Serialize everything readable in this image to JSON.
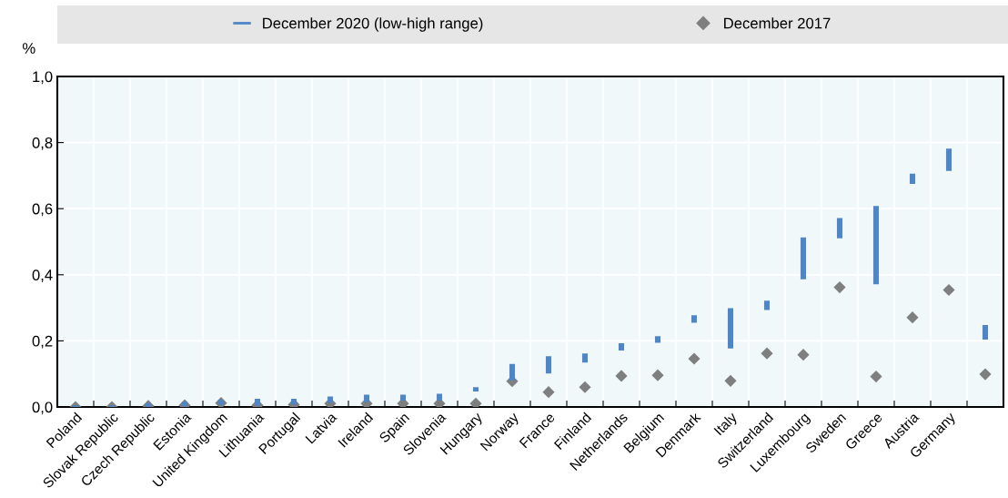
{
  "chart_data": {
    "type": "bar",
    "ylabel": "%",
    "categories": [
      "Poland",
      "Slovak Republic",
      "Czech Republic",
      "Estonia",
      "United Kingdom",
      "Lithuania",
      "Portugal",
      "Latvia",
      "Ireland",
      "Spain",
      "Slovenia",
      "Hungary",
      "Norway",
      "France",
      "Finland",
      "Netherlands",
      "Belgium",
      "Denmark",
      "Italy",
      "Switzerland",
      "Luxembourg",
      "Sweden",
      "Greece",
      "Austria",
      "Germany",
      null
    ],
    "series": [
      {
        "name": "December 2020 (low-high range)",
        "color": "#4f86c6",
        "base": [
          0.0,
          0.0,
          0.003,
          0.005,
          0.009,
          0.007,
          0.01,
          0.015,
          0.017,
          0.022,
          0.022,
          0.05,
          0.083,
          0.104,
          0.137,
          0.174,
          0.197,
          0.258,
          0.18,
          0.296,
          0.389,
          0.513,
          0.374,
          0.678,
          0.717,
          0.207
        ],
        "values": [
          0.002,
          0.002,
          0.006,
          0.009,
          0.01,
          0.015,
          0.012,
          0.014,
          0.017,
          0.012,
          0.015,
          0.007,
          0.044,
          0.047,
          0.022,
          0.016,
          0.014,
          0.017,
          0.116,
          0.023,
          0.121,
          0.056,
          0.231,
          0.025,
          0.062,
          0.038
        ]
      },
      {
        "name": "December 2017",
        "type": "scatter",
        "color": "#7f7f7f",
        "marker": "diamond",
        "values": [
          0.0,
          0.0,
          0.003,
          0.005,
          0.012,
          0.005,
          0.007,
          0.01,
          0.01,
          0.01,
          0.01,
          0.01,
          0.078,
          0.045,
          0.06,
          0.094,
          0.096,
          0.146,
          0.079,
          0.162,
          0.158,
          0.362,
          0.092,
          0.271,
          0.354,
          0.099
        ]
      }
    ],
    "ylim": [
      0,
      1.0
    ],
    "yticks": [
      {
        "value": 0,
        "label": "0,0"
      },
      {
        "value": 0.2,
        "label": "0,2"
      },
      {
        "value": 0.4,
        "label": "0,4"
      },
      {
        "value": 0.6,
        "label": "0,6"
      },
      {
        "value": 0.8,
        "label": "0,8"
      },
      {
        "value": 1.0,
        "label": "1,0"
      }
    ],
    "grid": true,
    "legend": "top"
  }
}
